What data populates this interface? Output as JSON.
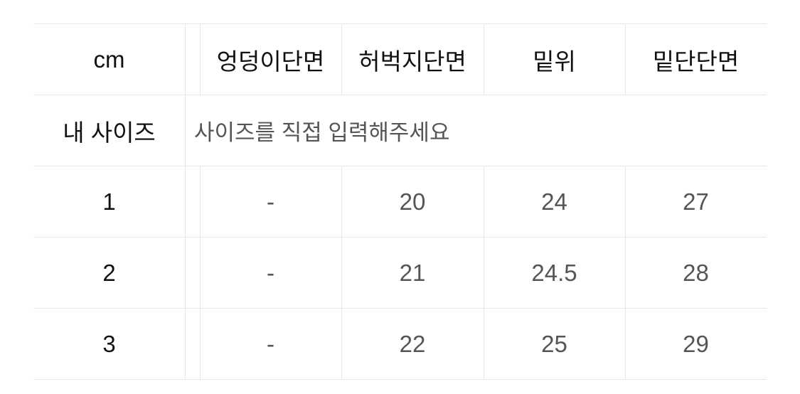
{
  "table": {
    "headers": [
      "cm",
      "엉덩이단면",
      "허벅지단면",
      "밑위",
      "밑단단면"
    ],
    "my_size": {
      "label": "내 사이즈",
      "placeholder": "사이즈를 직접 입력해주세요"
    },
    "rows": [
      [
        "1",
        "-",
        "20",
        "24",
        "27"
      ],
      [
        "2",
        "-",
        "21",
        "24.5",
        "28"
      ],
      [
        "3",
        "-",
        "22",
        "25",
        "29"
      ]
    ]
  }
}
